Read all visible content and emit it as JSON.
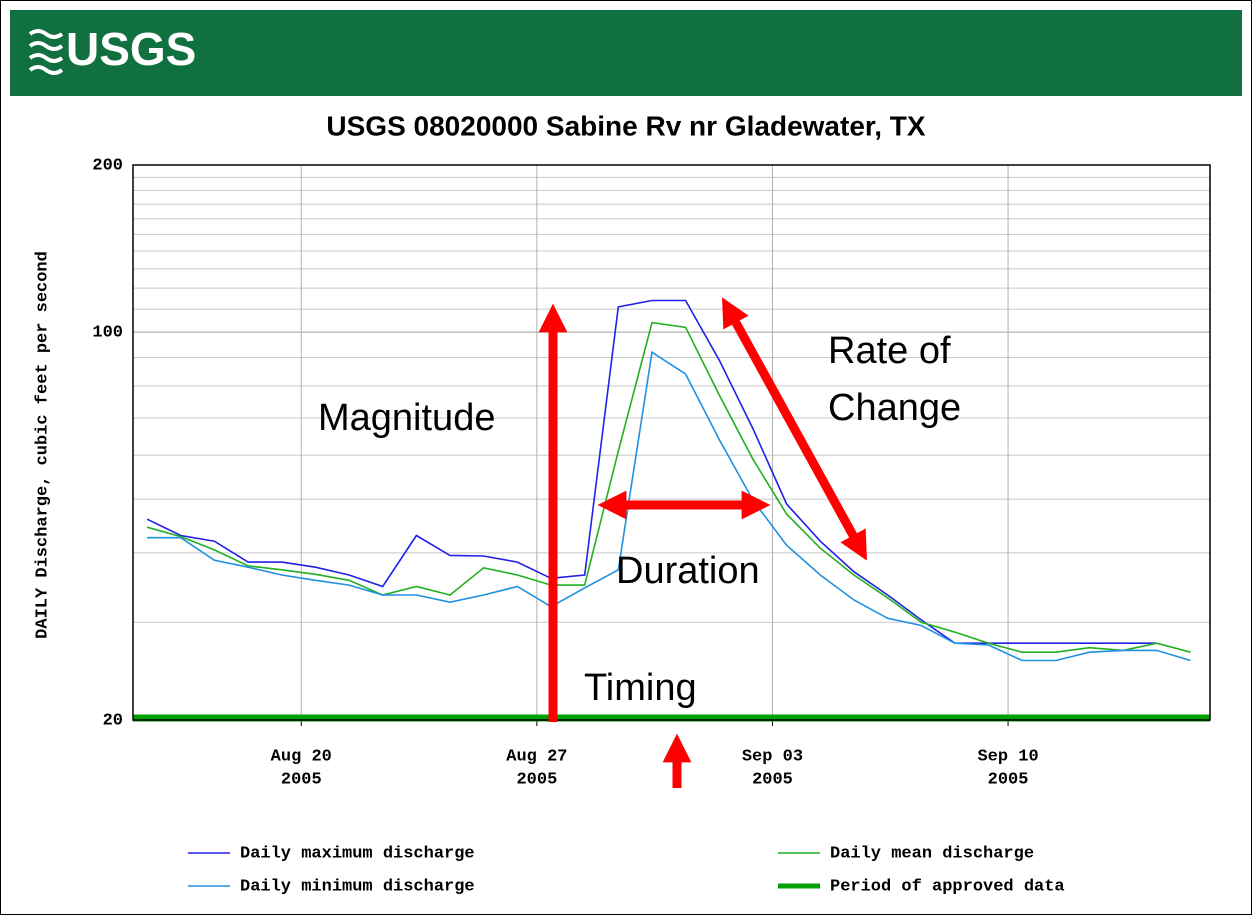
{
  "chart_data": {
    "type": "line",
    "logo": "USGS",
    "title": "USGS 08020000 Sabine Rv nr Gladewater, TX",
    "y_label": "DAILY Discharge, cubic feet per second",
    "log_y": true,
    "grid": true,
    "x": [
      "2005-08-15",
      "2005-08-16",
      "2005-08-17",
      "2005-08-18",
      "2005-08-19",
      "2005-08-20",
      "2005-08-21",
      "2005-08-22",
      "2005-08-23",
      "2005-08-24",
      "2005-08-25",
      "2005-08-26",
      "2005-08-27",
      "2005-08-28",
      "2005-08-29",
      "2005-08-30",
      "2005-08-31",
      "2005-09-01",
      "2005-09-02",
      "2005-09-03",
      "2005-09-04",
      "2005-09-05",
      "2005-09-06",
      "2005-09-07",
      "2005-09-08",
      "2005-09-09",
      "2005-09-10",
      "2005-09-11",
      "2005-09-12",
      "2005-09-13",
      "2005-09-14",
      "2005-09-15"
    ],
    "series": [
      {
        "name": "Daily maximum discharge",
        "color": "#2020e8",
        "values": [
          46,
          43,
          42,
          38.5,
          38.5,
          37.7,
          36.5,
          34.8,
          43,
          39.6,
          39.5,
          38.5,
          36,
          36.5,
          111,
          114,
          114,
          89,
          67,
          49,
          42,
          37,
          33.6,
          30.3,
          27.5,
          27.5,
          27.5,
          27.5,
          27.5,
          27.5,
          27.5,
          null
        ]
      },
      {
        "name": "Daily mean discharge",
        "color": "#20b020",
        "values": [
          44.5,
          42.8,
          40.5,
          37.9,
          37.3,
          36.6,
          35.7,
          33.6,
          34.8,
          33.6,
          37.6,
          36.5,
          35,
          35,
          61,
          104,
          102,
          77,
          59,
          47,
          40.8,
          36.5,
          33.2,
          30,
          28.8,
          27.5,
          26.5,
          26.5,
          27,
          26.7,
          27.5,
          26.5
        ]
      },
      {
        "name": "Daily minimum discharge",
        "color": "#2090e0",
        "values": [
          42.6,
          42.6,
          38.8,
          37.7,
          36.5,
          35.7,
          35,
          33.6,
          33.6,
          32.6,
          33.6,
          34.8,
          32,
          34.6,
          37.3,
          92,
          84,
          64,
          49.8,
          41.3,
          36.5,
          32.9,
          30.5,
          29.6,
          27.5,
          27.3,
          25.6,
          25.6,
          26.5,
          26.7,
          26.7,
          25.6
        ]
      }
    ],
    "approved_period": {
      "name": "Period of approved data",
      "color": "#00a000",
      "x": [
        "2005-08-15",
        "2005-09-16"
      ]
    },
    "xlim": [
      "2005-08-15",
      "2005-09-16"
    ],
    "xticks": [
      {
        "value": "2005-08-20",
        "label": "Aug 20",
        "sublabel": "2005"
      },
      {
        "value": "2005-08-27",
        "label": "Aug 27",
        "sublabel": "2005"
      },
      {
        "value": "2005-09-03",
        "label": "Sep 03",
        "sublabel": "2005"
      },
      {
        "value": "2005-09-10",
        "label": "Sep 10",
        "sublabel": "2005"
      }
    ],
    "ylim": [
      20,
      200
    ],
    "yticks": [
      20,
      100,
      200
    ],
    "y_minor_ticks": [
      30,
      40,
      50,
      60,
      70,
      80,
      90,
      110,
      120,
      130,
      140,
      150,
      160,
      170,
      180,
      190
    ],
    "annotations": {
      "magnitude": "Magnitude",
      "rate": [
        "Rate of",
        "Change"
      ],
      "duration": "Duration",
      "timing": "Timing"
    }
  }
}
